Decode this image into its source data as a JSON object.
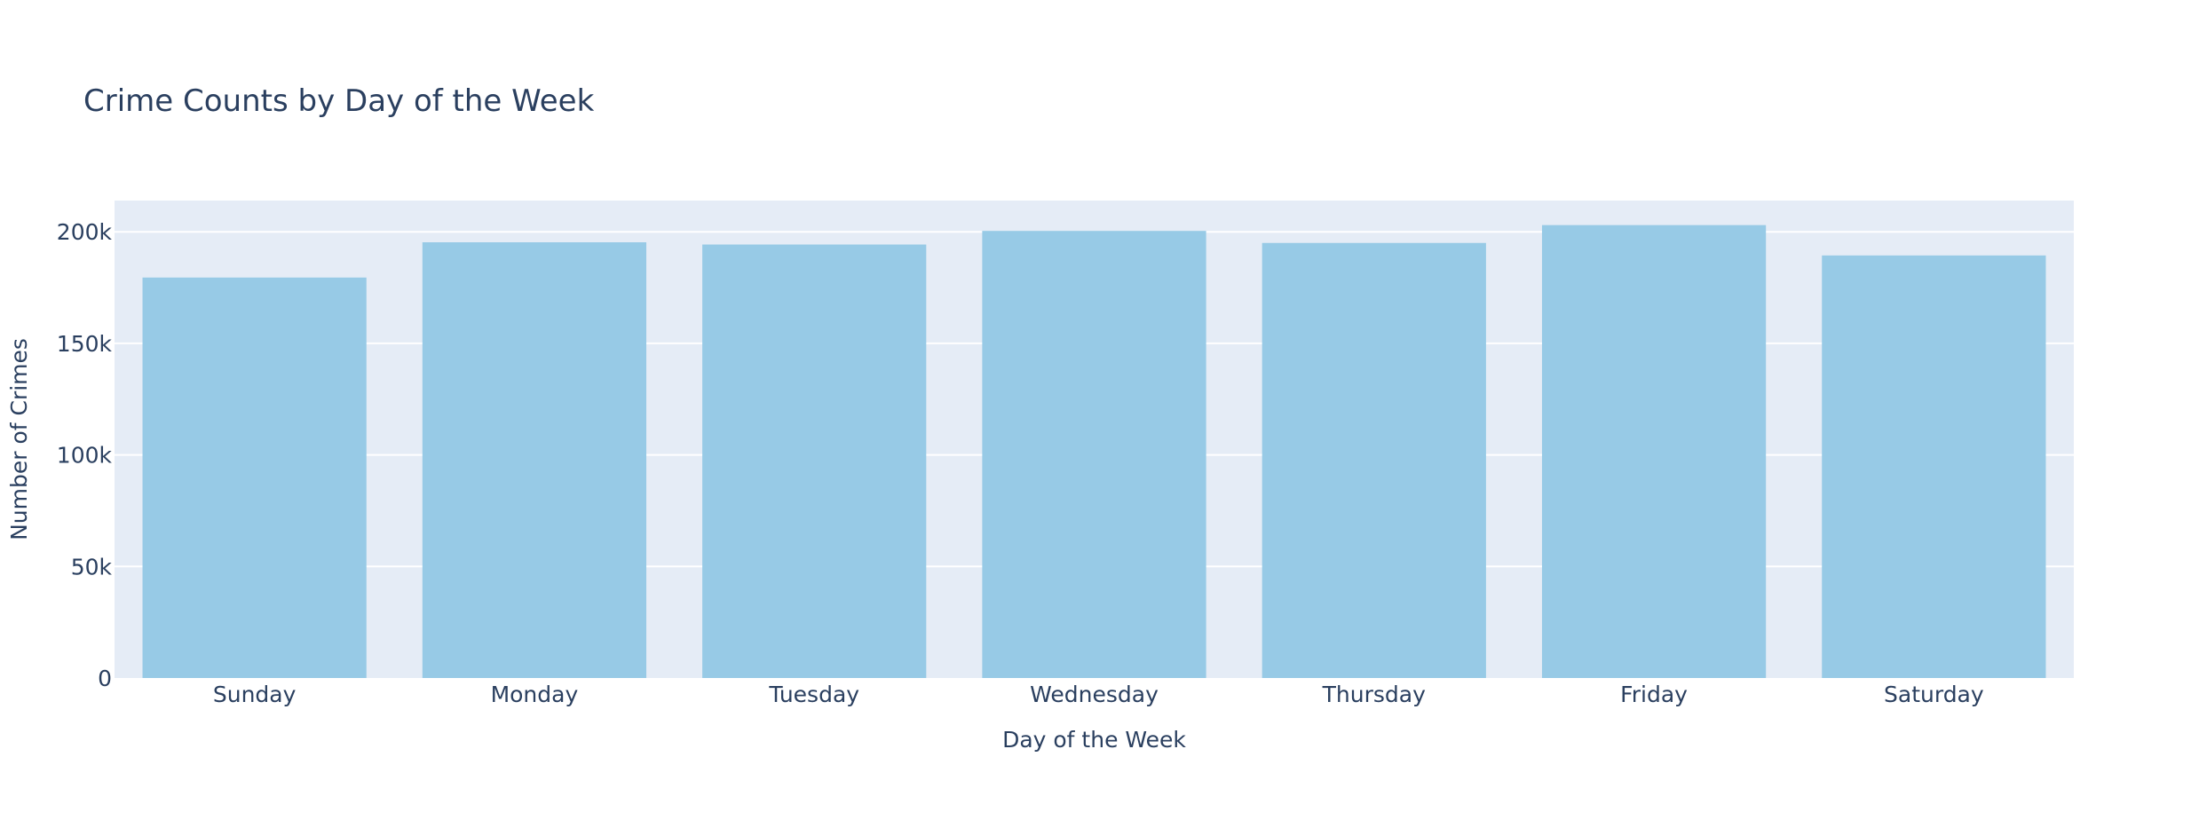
{
  "chart_data": {
    "type": "bar",
    "title": "Crime Counts by Day of the Week",
    "xlabel": "Day of the Week",
    "ylabel": "Number of Crimes",
    "categories": [
      "Sunday",
      "Monday",
      "Tuesday",
      "Wednesday",
      "Thursday",
      "Friday",
      "Saturday"
    ],
    "values": [
      179500,
      195300,
      194300,
      200400,
      195000,
      203000,
      189400
    ],
    "ylim": [
      0,
      214000
    ],
    "yticks": [
      0,
      50000,
      100000,
      150000,
      200000
    ],
    "ytick_labels": [
      "0",
      "50k",
      "100k",
      "150k",
      "200k"
    ],
    "grid": true,
    "legend": "none",
    "colors": {
      "bar": "#97cae6",
      "plot_bg": "#e5ecf6",
      "grid": "#ffffff",
      "text": "#2a3f5f"
    }
  }
}
